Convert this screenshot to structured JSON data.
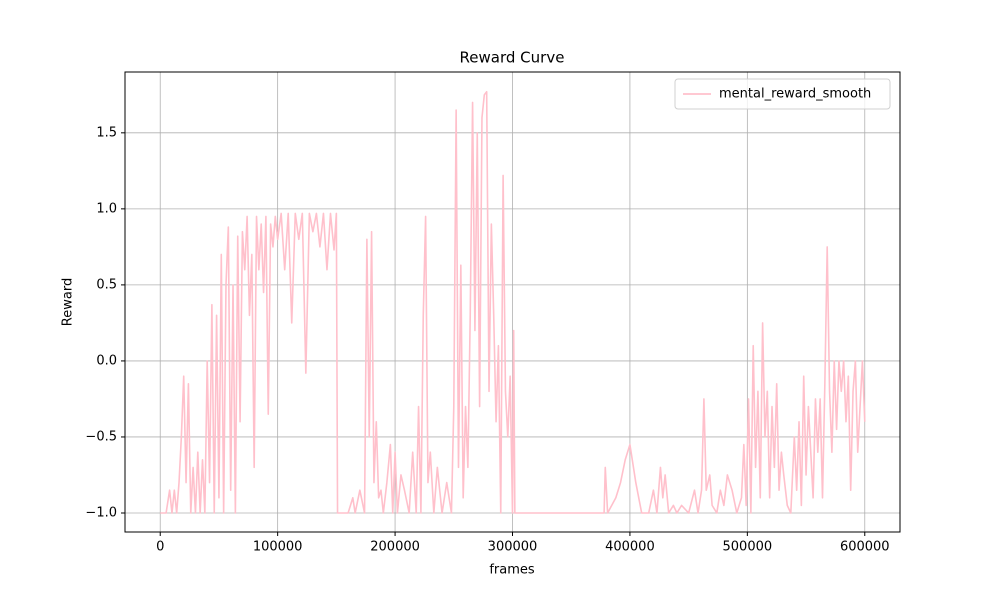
{
  "chart_data": {
    "type": "line",
    "title": "Reward Curve",
    "xlabel": "frames",
    "ylabel": "Reward",
    "xlim": [
      -30000,
      630000
    ],
    "ylim": [
      -1.125,
      1.9
    ],
    "xticks": [
      0,
      100000,
      200000,
      300000,
      400000,
      500000,
      600000
    ],
    "yticks": [
      {
        "value": -1,
        "label": "−1.0"
      },
      {
        "value": -0.5,
        "label": "−0.5"
      },
      {
        "value": 0,
        "label": "0.0"
      },
      0.5,
      {
        "value": 1,
        "label": "1.0"
      },
      1.5
    ],
    "grid": true,
    "legend": "upper right",
    "x": [
      0,
      5000,
      8000,
      10000,
      12000,
      14000,
      16000,
      18000,
      20000,
      22000,
      24000,
      26000,
      28000,
      30000,
      32000,
      34000,
      36000,
      38000,
      40000,
      42000,
      44000,
      46000,
      48000,
      50000,
      52000,
      54000,
      56000,
      58000,
      60000,
      62000,
      64000,
      66000,
      68000,
      70000,
      72000,
      74000,
      76000,
      78000,
      80000,
      82000,
      84000,
      86000,
      88000,
      90000,
      92000,
      94000,
      96000,
      98000,
      100000,
      103000,
      106000,
      109000,
      112000,
      115000,
      118000,
      121000,
      124000,
      127000,
      130000,
      133000,
      136000,
      139000,
      142000,
      145000,
      148000,
      150000,
      151000,
      160000,
      164000,
      166000,
      170000,
      174000,
      176000,
      178000,
      180000,
      182000,
      184000,
      186000,
      188000,
      190000,
      193000,
      196000,
      198000,
      200000,
      202000,
      205000,
      208000,
      212000,
      215000,
      218000,
      220000,
      222000,
      224000,
      226000,
      228000,
      230000,
      233000,
      236000,
      240000,
      244000,
      248000,
      250000,
      252000,
      254000,
      256000,
      258000,
      260000,
      262000,
      264000,
      266000,
      268000,
      270000,
      272000,
      274000,
      276000,
      278000,
      280000,
      282000,
      284000,
      286000,
      288000,
      290000,
      292000,
      294000,
      296000,
      298000,
      300000,
      301000,
      302000,
      340000,
      378000,
      379000,
      381000,
      388000,
      392000,
      396000,
      398000,
      400000,
      402000,
      405000,
      410000,
      416000,
      420000,
      423000,
      426000,
      428000,
      430000,
      433000,
      437000,
      440000,
      444000,
      450000,
      455000,
      458000,
      461000,
      463000,
      465000,
      468000,
      470000,
      474000,
      477000,
      480000,
      483000,
      487000,
      491000,
      495000,
      497000,
      499000,
      501000,
      503000,
      505000,
      507000,
      509000,
      511000,
      513000,
      515000,
      517000,
      519000,
      521000,
      523000,
      525000,
      527000,
      529000,
      531000,
      534000,
      537000,
      540000,
      542000,
      544000,
      546000,
      548000,
      550000,
      552000,
      554000,
      556000,
      558000,
      560000,
      562000,
      564000,
      566000,
      568000,
      570000,
      572000,
      574000,
      576000,
      578000,
      580000,
      582000,
      584000,
      586000,
      588000,
      590000,
      592000,
      594000,
      596000,
      598000,
      600000
    ],
    "series": [
      {
        "name": "mental_reward_smooth",
        "color": "#ffc0cb",
        "values": [
          -1,
          -1,
          -0.85,
          -1,
          -0.85,
          -1,
          -0.8,
          -0.5,
          -0.1,
          -0.8,
          -0.15,
          -1,
          -0.7,
          -1,
          -0.6,
          -1,
          -0.65,
          -1,
          0,
          -0.8,
          0.37,
          -1,
          0.3,
          -0.9,
          0.7,
          -1,
          0.5,
          0.88,
          -0.85,
          0.5,
          -1,
          0.82,
          -0.4,
          0.85,
          0.6,
          0.95,
          0.3,
          0.7,
          -0.7,
          0.95,
          0.6,
          0.9,
          0.45,
          0.95,
          -0.35,
          0.9,
          0.75,
          0.95,
          0.8,
          0.97,
          0.6,
          0.97,
          0.25,
          0.97,
          0.8,
          0.97,
          -0.08,
          0.97,
          0.85,
          0.97,
          0.75,
          0.97,
          0.6,
          0.97,
          0.73,
          0.97,
          -1,
          -1,
          -0.9,
          -1,
          -0.85,
          -1,
          0.8,
          -0.5,
          0.85,
          -0.8,
          -0.4,
          -0.9,
          -0.85,
          -1,
          -0.8,
          -0.55,
          -1,
          -0.6,
          -1,
          -0.75,
          -0.85,
          -1,
          -0.6,
          -1,
          -0.3,
          -1,
          0.3,
          0.95,
          -0.8,
          -0.6,
          -1,
          -0.7,
          -1,
          -0.8,
          -1,
          -0.3,
          1.65,
          -0.7,
          0.63,
          -0.9,
          -0.3,
          -0.7,
          0.3,
          1.7,
          0.2,
          1.5,
          -0.3,
          1.6,
          1.75,
          1.77,
          -0.2,
          0.9,
          0.3,
          -0.4,
          0.1,
          -1,
          1.22,
          -0.2,
          -0.5,
          -0.1,
          -1,
          0.2,
          -1,
          -1,
          -1,
          -0.7,
          -1,
          -0.9,
          -0.8,
          -0.65,
          -0.6,
          -0.55,
          -0.65,
          -0.8,
          -1,
          -1,
          -0.85,
          -1,
          -0.7,
          -0.9,
          -0.75,
          -1,
          -0.95,
          -1,
          -0.95,
          -1,
          -0.85,
          -1,
          -0.85,
          -0.25,
          -0.85,
          -0.75,
          -0.95,
          -1,
          -0.85,
          -0.95,
          -0.75,
          -0.85,
          -1,
          -0.9,
          -0.55,
          -0.95,
          -0.25,
          -1,
          0.1,
          -0.7,
          -0.2,
          -0.9,
          0.25,
          -0.5,
          -0.2,
          -0.9,
          -0.3,
          -0.7,
          -0.15,
          -0.85,
          -0.6,
          -0.75,
          -0.95,
          -1,
          -0.5,
          -0.85,
          -0.4,
          -0.95,
          -0.1,
          -0.75,
          -0.3,
          -0.6,
          -0.9,
          -0.25,
          -0.6,
          -0.25,
          -0.9,
          -0.15,
          0.75,
          -0.2,
          -0.6,
          0,
          -0.45,
          0,
          -0.2,
          0,
          -0.4,
          -0.1,
          -0.85,
          -0.2,
          0,
          -0.6,
          -0.3,
          0,
          -0.4
        ]
      }
    ]
  }
}
